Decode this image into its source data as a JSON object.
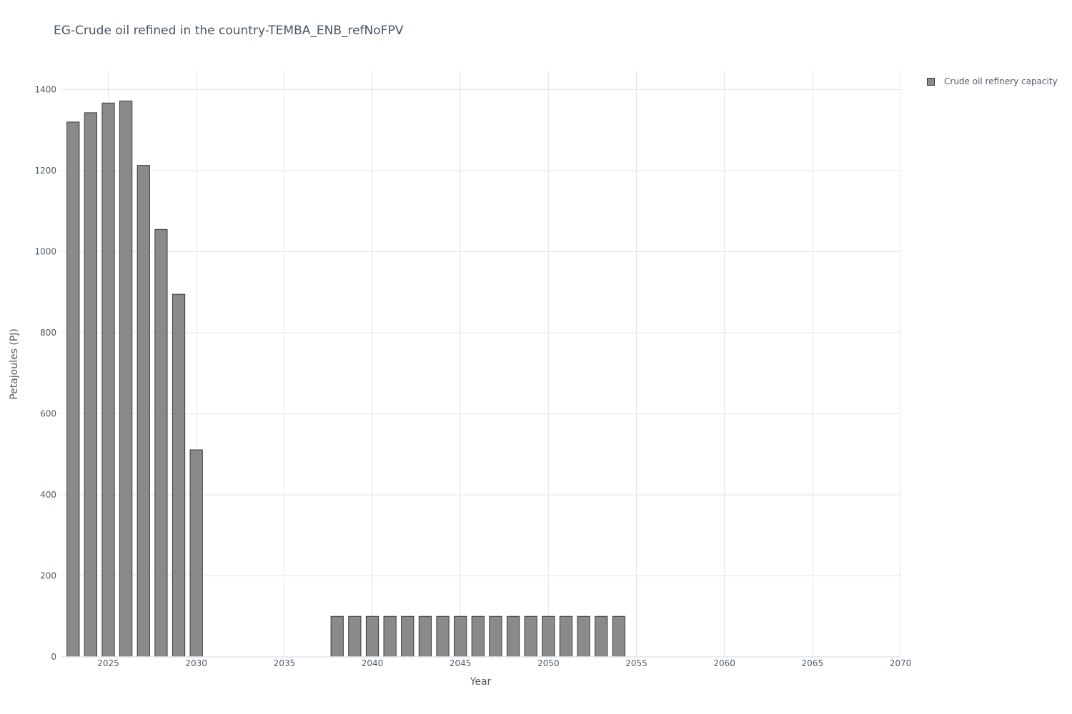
{
  "chart_data": {
    "type": "bar",
    "title": "EG-Crude oil refined in the country-TEMBA_ENB_refNoFPV",
    "xlabel": "Year",
    "ylabel": "Petajoules (PJ)",
    "xlim": [
      2022.3,
      2070
    ],
    "ylim": [
      0,
      1445
    ],
    "x_ticks": [
      2025,
      2030,
      2035,
      2040,
      2045,
      2050,
      2055,
      2060,
      2065,
      2070
    ],
    "y_ticks": [
      0,
      200,
      400,
      600,
      800,
      1000,
      1200,
      1400
    ],
    "grid": true,
    "legend_position": "top-right",
    "series": [
      {
        "name": "Crude oil refinery capacity",
        "color": "#8a8a8b",
        "x": [
          2023,
          2024,
          2025,
          2026,
          2027,
          2028,
          2029,
          2030,
          2031,
          2032,
          2033,
          2034,
          2035,
          2036,
          2037,
          2038,
          2039,
          2040,
          2041,
          2042,
          2043,
          2044,
          2045,
          2046,
          2047,
          2048,
          2049,
          2050,
          2051,
          2052,
          2053,
          2054
        ],
        "values": [
          1320,
          1343,
          1367,
          1372,
          1213,
          1055,
          895,
          511,
          0,
          0,
          0,
          0,
          0,
          0,
          0,
          100,
          100,
          100,
          100,
          100,
          100,
          100,
          100,
          100,
          100,
          100,
          100,
          100,
          100,
          100,
          100,
          100
        ]
      }
    ]
  }
}
